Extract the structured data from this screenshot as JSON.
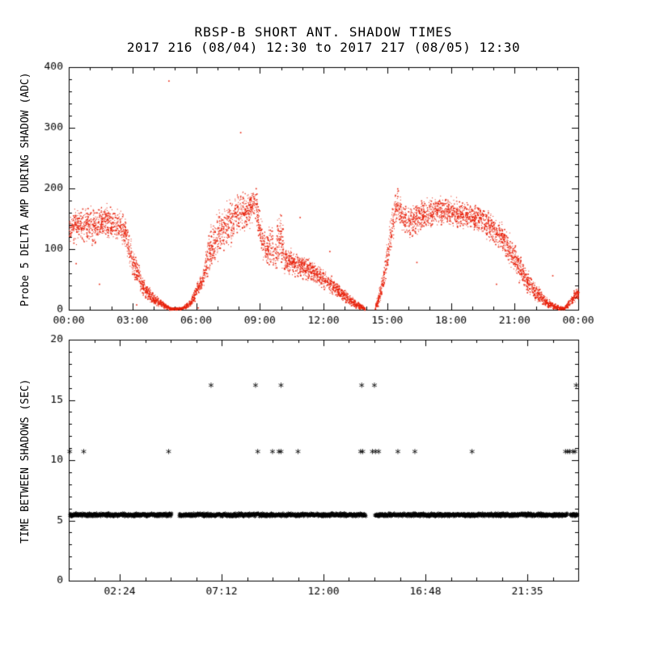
{
  "title": "RBSP-B SHORT ANT. SHADOW TIMES",
  "subtitle": "2017 216 (08/04) 12:30 to 2017 217 (08/05) 12:30",
  "colors": {
    "data_red": "#e8220c",
    "axis_black": "#000000",
    "background": "#ffffff"
  },
  "chart_data": [
    {
      "type": "scatter",
      "panel": "top",
      "marker": "dot",
      "color_key": "data_red",
      "title": "",
      "ylabel": "Probe 5 DELTA AMP DURING SHADOW (ADC)",
      "ylim": [
        0,
        400
      ],
      "yticks": [
        0,
        100,
        200,
        300,
        400
      ],
      "y_minor_step": 20,
      "xlim_hours": [
        0,
        24
      ],
      "xticks_hours": [
        0,
        3,
        6,
        9,
        12,
        15,
        18,
        21,
        24
      ],
      "xtick_labels": [
        "00:00",
        "03:00",
        "06:00",
        "09:00",
        "12:00",
        "15:00",
        "18:00",
        "21:00",
        "00:00"
      ],
      "x_minor_step_hours": 1,
      "grid": false,
      "band_segments_hours": [
        [
          0.0,
          13.95
        ],
        [
          14.42,
          24.0
        ]
      ],
      "band_envelope": [
        [
          0.0,
          108,
          165
        ],
        [
          0.6,
          112,
          172
        ],
        [
          1.2,
          108,
          168
        ],
        [
          1.7,
          118,
          175
        ],
        [
          2.2,
          112,
          168
        ],
        [
          2.6,
          100,
          160
        ],
        [
          3.0,
          55,
          105
        ],
        [
          3.5,
          22,
          55
        ],
        [
          4.0,
          8,
          28
        ],
        [
          4.5,
          2,
          12
        ],
        [
          4.8,
          0,
          4
        ],
        [
          5.3,
          0,
          5
        ],
        [
          5.7,
          4,
          16
        ],
        [
          6.0,
          22,
          45
        ],
        [
          6.3,
          35,
          60
        ],
        [
          6.55,
          55,
          130
        ],
        [
          7.0,
          85,
          160
        ],
        [
          7.5,
          105,
          178
        ],
        [
          8.0,
          120,
          192
        ],
        [
          8.5,
          135,
          202
        ],
        [
          8.75,
          148,
          212
        ],
        [
          9.05,
          92,
          152
        ],
        [
          9.3,
          72,
          122
        ],
        [
          9.55,
          70,
          160
        ],
        [
          9.7,
          62,
          115
        ],
        [
          9.95,
          75,
          190
        ],
        [
          10.15,
          60,
          105
        ],
        [
          10.5,
          58,
          100
        ],
        [
          11.0,
          52,
          92
        ],
        [
          11.5,
          45,
          82
        ],
        [
          12.0,
          35,
          65
        ],
        [
          12.5,
          24,
          50
        ],
        [
          13.0,
          12,
          35
        ],
        [
          13.5,
          3,
          16
        ],
        [
          13.95,
          0,
          5
        ],
        [
          14.42,
          0,
          8
        ],
        [
          14.7,
          15,
          50
        ],
        [
          15.0,
          55,
          115
        ],
        [
          15.25,
          115,
          185
        ],
        [
          15.45,
          148,
          202
        ],
        [
          15.7,
          128,
          180
        ],
        [
          16.0,
          118,
          170
        ],
        [
          16.5,
          128,
          180
        ],
        [
          17.0,
          135,
          185
        ],
        [
          17.5,
          140,
          190
        ],
        [
          18.0,
          138,
          186
        ],
        [
          18.5,
          134,
          180
        ],
        [
          19.0,
          130,
          176
        ],
        [
          19.5,
          124,
          170
        ],
        [
          20.0,
          108,
          158
        ],
        [
          20.5,
          88,
          138
        ],
        [
          21.0,
          58,
          108
        ],
        [
          21.5,
          32,
          72
        ],
        [
          22.0,
          14,
          44
        ],
        [
          22.5,
          4,
          20
        ],
        [
          23.0,
          0,
          8
        ],
        [
          23.3,
          0,
          5
        ],
        [
          23.55,
          4,
          18
        ],
        [
          23.8,
          14,
          34
        ],
        [
          24.0,
          18,
          38
        ]
      ],
      "outliers": [
        [
          4.72,
          377
        ],
        [
          8.1,
          292
        ],
        [
          1.45,
          42
        ],
        [
          0.35,
          76
        ],
        [
          5.95,
          14
        ],
        [
          10.9,
          152
        ],
        [
          12.3,
          96
        ],
        [
          16.4,
          78
        ],
        [
          20.15,
          42
        ],
        [
          22.8,
          56
        ],
        [
          6.1,
          3
        ],
        [
          3.2,
          8
        ]
      ]
    },
    {
      "type": "scatter",
      "panel": "bottom",
      "marker": "asterisk",
      "color_key": "axis_black",
      "title": "",
      "ylabel": "TIME BETWEEN SHADOWS (SEC)",
      "ylim": [
        0,
        20
      ],
      "yticks": [
        0,
        5,
        10,
        15,
        20
      ],
      "y_minor_step": 1,
      "xlim_hours": [
        0,
        24
      ],
      "xticks_hours": [
        2.4,
        7.2,
        12.0,
        16.8,
        21.6
      ],
      "xtick_labels": [
        "02:24",
        "07:12",
        "12:00",
        "16:48",
        "21:35"
      ],
      "x_minor_step_hours": 1.2,
      "grid": false,
      "base_band": {
        "value_sec": 5.4,
        "jitter_sec": 0.12,
        "segments_hours": [
          [
            0.05,
            4.85
          ],
          [
            5.2,
            14.0
          ],
          [
            14.42,
            23.5
          ],
          [
            23.62,
            23.97
          ]
        ]
      },
      "level_points": [
        {
          "value_sec": 10.7,
          "times_hours": [
            0.05,
            0.7,
            4.7,
            8.9,
            9.6,
            9.9,
            10.0,
            10.8,
            13.75,
            13.85,
            14.3,
            14.45,
            14.6,
            15.5,
            16.3,
            19.0,
            23.4,
            23.5,
            23.6,
            23.75,
            23.85
          ]
        },
        {
          "value_sec": 16.2,
          "times_hours": [
            6.7,
            8.8,
            10.0,
            13.8,
            14.4,
            23.9
          ]
        }
      ]
    }
  ]
}
